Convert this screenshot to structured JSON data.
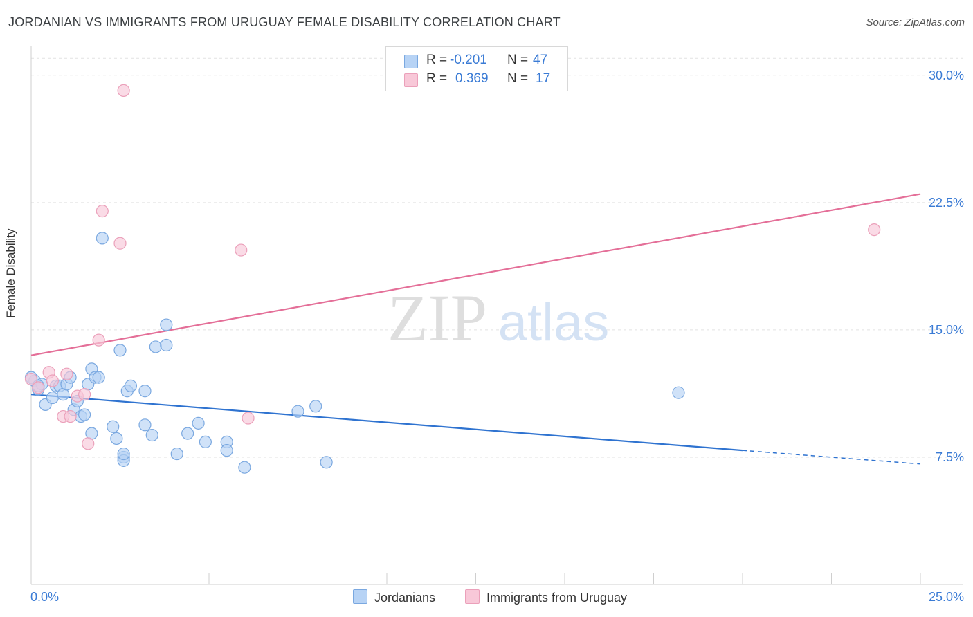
{
  "title": "JORDANIAN VS IMMIGRANTS FROM URUGUAY FEMALE DISABILITY CORRELATION CHART",
  "source": "Source: ZipAtlas.com",
  "watermark": {
    "zip": "ZIP",
    "atlas": "atlas"
  },
  "colors": {
    "blue_fill": "#b7d3f5",
    "blue_stroke": "#7aa8e0",
    "blue_line": "#2f73d0",
    "pink_fill": "#f8c8d8",
    "pink_stroke": "#eba0ba",
    "pink_line": "#e46f98",
    "tick_label": "#3a7bd5"
  },
  "legend": {
    "rows": [
      {
        "r_label": "R =",
        "r_value": "-0.201",
        "n_label": "N =",
        "n_value": "47"
      },
      {
        "r_label": "R =",
        "r_value": "0.369",
        "n_label": "N =",
        "n_value": "17"
      }
    ]
  },
  "bottom_legend": {
    "series1": "Jordanians",
    "series2": "Immigrants from Uruguay"
  },
  "chart_data": {
    "type": "scatter",
    "title": "JORDANIAN VS IMMIGRANTS FROM URUGUAY FEMALE DISABILITY CORRELATION CHART",
    "xlabel": "",
    "ylabel": "Female Disability",
    "xlim": [
      0,
      25
    ],
    "ylim": [
      0,
      31.5
    ],
    "x_tick_labels": [
      "0.0%",
      "25.0%"
    ],
    "y_ticks": [
      7.5,
      15.0,
      22.5,
      30.0
    ],
    "y_tick_labels": [
      "7.5%",
      "15.0%",
      "22.5%",
      "30.0%"
    ],
    "series": [
      {
        "name": "Jordanians",
        "points": [
          [
            0.1,
            12.0
          ],
          [
            0.2,
            11.5
          ],
          [
            0.3,
            11.8
          ],
          [
            0.4,
            10.6
          ],
          [
            0.6,
            11.0
          ],
          [
            0.7,
            11.7
          ],
          [
            0.8,
            11.7
          ],
          [
            0.9,
            11.2
          ],
          [
            1.0,
            11.8
          ],
          [
            1.1,
            12.2
          ],
          [
            1.2,
            10.3
          ],
          [
            1.3,
            10.8
          ],
          [
            1.4,
            9.9
          ],
          [
            1.5,
            10.0
          ],
          [
            1.6,
            11.8
          ],
          [
            1.7,
            8.9
          ],
          [
            1.7,
            12.7
          ],
          [
            1.8,
            12.2
          ],
          [
            1.9,
            12.2
          ],
          [
            2.0,
            20.4
          ],
          [
            2.3,
            9.3
          ],
          [
            2.4,
            8.6
          ],
          [
            2.5,
            13.8
          ],
          [
            2.6,
            7.5
          ],
          [
            2.6,
            7.3
          ],
          [
            2.6,
            7.7
          ],
          [
            2.7,
            11.4
          ],
          [
            2.8,
            11.7
          ],
          [
            3.2,
            11.4
          ],
          [
            3.2,
            9.4
          ],
          [
            3.4,
            8.8
          ],
          [
            3.5,
            14.0
          ],
          [
            3.8,
            15.3
          ],
          [
            3.8,
            14.1
          ],
          [
            4.1,
            7.7
          ],
          [
            4.4,
            8.9
          ],
          [
            4.7,
            9.5
          ],
          [
            4.9,
            8.4
          ],
          [
            5.5,
            8.4
          ],
          [
            5.5,
            7.9
          ],
          [
            6.0,
            6.9
          ],
          [
            7.5,
            10.2
          ],
          [
            8.0,
            10.5
          ],
          [
            8.3,
            7.2
          ],
          [
            18.2,
            11.3
          ],
          [
            0.0,
            12.2
          ],
          [
            0.2,
            11.7
          ]
        ]
      },
      {
        "name": "Immigrants from Uruguay",
        "points": [
          [
            0.0,
            12.1
          ],
          [
            0.2,
            11.6
          ],
          [
            0.5,
            12.5
          ],
          [
            0.6,
            12.0
          ],
          [
            0.9,
            9.9
          ],
          [
            1.0,
            12.4
          ],
          [
            1.1,
            9.9
          ],
          [
            1.3,
            11.1
          ],
          [
            1.5,
            11.2
          ],
          [
            1.6,
            8.3
          ],
          [
            1.9,
            14.4
          ],
          [
            2.0,
            22.0
          ],
          [
            2.5,
            20.1
          ],
          [
            2.6,
            29.1
          ],
          [
            5.9,
            19.7
          ],
          [
            6.1,
            9.8
          ],
          [
            23.7,
            20.9
          ]
        ]
      }
    ],
    "trendlines": [
      {
        "name": "Jordanians",
        "x": [
          0,
          20,
          25
        ],
        "y": [
          11.2,
          7.9,
          7.1
        ],
        "dashed_from_x": 20
      },
      {
        "name": "Immigrants from Uruguay",
        "x": [
          0,
          25
        ],
        "y": [
          13.5,
          23.0
        ]
      }
    ]
  }
}
